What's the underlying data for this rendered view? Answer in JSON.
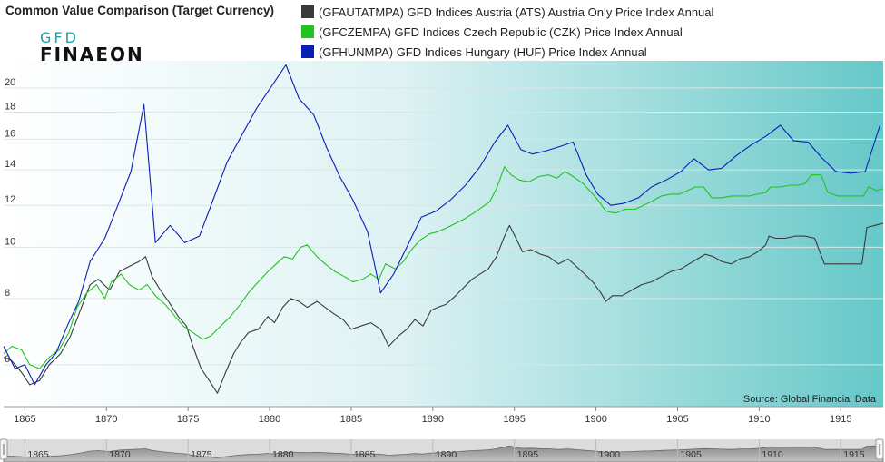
{
  "header": {
    "title": "Common Value Comparison (Target Currency)"
  },
  "logo": {
    "line1": "GFD",
    "line2": "FINAEON"
  },
  "legend": [
    {
      "label": "(GFAUTATMPA) GFD Indices Austria (ATS) Austria Only Price Index Annual",
      "color": "#3a3a3a"
    },
    {
      "label": "(GFCZEMPA) GFD Indices Czech Republic (CZK) Price Index Annual",
      "color": "#1fc41f"
    },
    {
      "label": "(GFHUNMPA) GFD Indices Hungary (HUF) Price Index Annual",
      "color": "#0a1fb5"
    }
  ],
  "source": "Source: Global Financial Data",
  "chart_data": {
    "type": "line",
    "xlim": [
      1863.7,
      1917.6
    ],
    "ylim": [
      5.0,
      22.5
    ],
    "y_scale": "log",
    "yticks": [
      6,
      8,
      10,
      12,
      14,
      16,
      18,
      20
    ],
    "xticks": [
      1865,
      1870,
      1875,
      1880,
      1885,
      1890,
      1895,
      1900,
      1905,
      1910,
      1915
    ],
    "navigator_ticks": [
      1865,
      1870,
      1875,
      1880,
      1885,
      1890,
      1895,
      1900,
      1905,
      1910,
      1915
    ],
    "series": [
      {
        "name": "(GFAUTATMPA) GFD Indices Austria (ATS) Austria Only Price Index Annual",
        "color": "#3a3a3a",
        "points": [
          [
            1863.7,
            6.2
          ],
          [
            1864.2,
            6.1
          ],
          [
            1864.8,
            5.8
          ],
          [
            1865.3,
            5.5
          ],
          [
            1865.9,
            5.6
          ],
          [
            1866.5,
            6.0
          ],
          [
            1867.2,
            6.3
          ],
          [
            1867.8,
            6.8
          ],
          [
            1868.4,
            7.6
          ],
          [
            1869.0,
            8.5
          ],
          [
            1869.5,
            8.7
          ],
          [
            1870.2,
            8.3
          ],
          [
            1870.8,
            9.0
          ],
          [
            1871.4,
            9.2
          ],
          [
            1872.0,
            9.4
          ],
          [
            1872.4,
            9.6
          ],
          [
            1872.8,
            8.8
          ],
          [
            1873.3,
            8.3
          ],
          [
            1873.8,
            7.9
          ],
          [
            1874.4,
            7.4
          ],
          [
            1874.9,
            7.1
          ],
          [
            1875.3,
            6.5
          ],
          [
            1875.8,
            5.9
          ],
          [
            1876.3,
            5.6
          ],
          [
            1876.8,
            5.3
          ],
          [
            1877.3,
            5.8
          ],
          [
            1877.8,
            6.3
          ],
          [
            1878.2,
            6.6
          ],
          [
            1878.7,
            6.9
          ],
          [
            1879.3,
            7.0
          ],
          [
            1879.9,
            7.4
          ],
          [
            1880.3,
            7.2
          ],
          [
            1880.8,
            7.7
          ],
          [
            1881.3,
            8.0
          ],
          [
            1881.8,
            7.9
          ],
          [
            1882.3,
            7.7
          ],
          [
            1882.9,
            7.9
          ],
          [
            1883.4,
            7.7
          ],
          [
            1883.9,
            7.5
          ],
          [
            1884.5,
            7.3
          ],
          [
            1885.0,
            7.0
          ],
          [
            1885.6,
            7.1
          ],
          [
            1886.2,
            7.2
          ],
          [
            1886.8,
            7.0
          ],
          [
            1887.3,
            6.5
          ],
          [
            1887.9,
            6.8
          ],
          [
            1888.4,
            7.0
          ],
          [
            1888.9,
            7.3
          ],
          [
            1889.4,
            7.1
          ],
          [
            1889.9,
            7.6
          ],
          [
            1890.3,
            7.7
          ],
          [
            1890.8,
            7.8
          ],
          [
            1891.4,
            8.1
          ],
          [
            1891.9,
            8.4
          ],
          [
            1892.4,
            8.7
          ],
          [
            1892.9,
            8.9
          ],
          [
            1893.4,
            9.1
          ],
          [
            1893.9,
            9.6
          ],
          [
            1894.4,
            10.5
          ],
          [
            1894.7,
            11.0
          ],
          [
            1895.1,
            10.4
          ],
          [
            1895.5,
            9.8
          ],
          [
            1896.0,
            9.9
          ],
          [
            1896.6,
            9.7
          ],
          [
            1897.1,
            9.6
          ],
          [
            1897.7,
            9.3
          ],
          [
            1898.3,
            9.5
          ],
          [
            1898.8,
            9.2
          ],
          [
            1899.3,
            8.9
          ],
          [
            1899.8,
            8.6
          ],
          [
            1900.3,
            8.2
          ],
          [
            1900.6,
            7.9
          ],
          [
            1901.0,
            8.1
          ],
          [
            1901.6,
            8.1
          ],
          [
            1902.2,
            8.3
          ],
          [
            1902.8,
            8.5
          ],
          [
            1903.4,
            8.6
          ],
          [
            1904.0,
            8.8
          ],
          [
            1904.6,
            9.0
          ],
          [
            1905.2,
            9.1
          ],
          [
            1905.7,
            9.3
          ],
          [
            1906.2,
            9.5
          ],
          [
            1906.7,
            9.7
          ],
          [
            1907.2,
            9.6
          ],
          [
            1907.7,
            9.4
          ],
          [
            1908.3,
            9.3
          ],
          [
            1908.8,
            9.5
          ],
          [
            1909.4,
            9.6
          ],
          [
            1909.9,
            9.8
          ],
          [
            1910.4,
            10.1
          ],
          [
            1910.6,
            10.5
          ],
          [
            1911.0,
            10.4
          ],
          [
            1911.6,
            10.4
          ],
          [
            1912.2,
            10.5
          ],
          [
            1912.8,
            10.5
          ],
          [
            1913.4,
            10.4
          ],
          [
            1914.0,
            9.3
          ],
          [
            1914.6,
            9.3
          ],
          [
            1915.2,
            9.3
          ],
          [
            1915.8,
            9.3
          ],
          [
            1916.3,
            9.3
          ],
          [
            1916.6,
            10.9
          ],
          [
            1917.1,
            11.0
          ],
          [
            1917.6,
            11.1
          ]
        ]
      },
      {
        "name": "(GFCZEMPA) GFD Indices Czech Republic (CZK) Price Index Annual",
        "color": "#1fc41f",
        "points": [
          [
            1863.7,
            6.3
          ],
          [
            1864.2,
            6.5
          ],
          [
            1864.8,
            6.4
          ],
          [
            1865.3,
            6.0
          ],
          [
            1865.9,
            5.9
          ],
          [
            1866.5,
            6.2
          ],
          [
            1867.1,
            6.4
          ],
          [
            1867.7,
            6.9
          ],
          [
            1868.2,
            7.7
          ],
          [
            1868.8,
            8.2
          ],
          [
            1869.4,
            8.5
          ],
          [
            1869.9,
            8.0
          ],
          [
            1870.3,
            8.6
          ],
          [
            1870.9,
            8.9
          ],
          [
            1871.4,
            8.5
          ],
          [
            1872.0,
            8.3
          ],
          [
            1872.5,
            8.5
          ],
          [
            1873.0,
            8.1
          ],
          [
            1873.6,
            7.8
          ],
          [
            1874.2,
            7.4
          ],
          [
            1874.7,
            7.1
          ],
          [
            1875.3,
            6.9
          ],
          [
            1875.9,
            6.7
          ],
          [
            1876.4,
            6.8
          ],
          [
            1877.0,
            7.1
          ],
          [
            1877.6,
            7.4
          ],
          [
            1878.2,
            7.8
          ],
          [
            1878.7,
            8.2
          ],
          [
            1879.3,
            8.6
          ],
          [
            1879.9,
            9.0
          ],
          [
            1880.4,
            9.3
          ],
          [
            1880.9,
            9.6
          ],
          [
            1881.4,
            9.5
          ],
          [
            1881.9,
            10.0
          ],
          [
            1882.3,
            10.1
          ],
          [
            1882.9,
            9.6
          ],
          [
            1883.4,
            9.3
          ],
          [
            1884.0,
            9.0
          ],
          [
            1884.6,
            8.8
          ],
          [
            1885.1,
            8.6
          ],
          [
            1885.7,
            8.7
          ],
          [
            1886.2,
            8.9
          ],
          [
            1886.7,
            8.7
          ],
          [
            1887.1,
            9.3
          ],
          [
            1887.7,
            9.1
          ],
          [
            1888.2,
            9.4
          ],
          [
            1888.7,
            9.9
          ],
          [
            1889.2,
            10.3
          ],
          [
            1889.8,
            10.6
          ],
          [
            1890.3,
            10.7
          ],
          [
            1890.9,
            10.9
          ],
          [
            1891.4,
            11.1
          ],
          [
            1891.9,
            11.3
          ],
          [
            1892.5,
            11.6
          ],
          [
            1893.0,
            11.9
          ],
          [
            1893.5,
            12.2
          ],
          [
            1893.9,
            12.9
          ],
          [
            1894.4,
            14.2
          ],
          [
            1894.8,
            13.7
          ],
          [
            1895.3,
            13.4
          ],
          [
            1895.9,
            13.3
          ],
          [
            1896.5,
            13.6
          ],
          [
            1897.1,
            13.7
          ],
          [
            1897.6,
            13.5
          ],
          [
            1898.1,
            13.9
          ],
          [
            1898.6,
            13.6
          ],
          [
            1899.2,
            13.2
          ],
          [
            1899.7,
            12.7
          ],
          [
            1900.1,
            12.3
          ],
          [
            1900.6,
            11.7
          ],
          [
            1901.2,
            11.6
          ],
          [
            1901.8,
            11.8
          ],
          [
            1902.4,
            11.8
          ],
          [
            1902.9,
            12.0
          ],
          [
            1903.4,
            12.2
          ],
          [
            1904.0,
            12.5
          ],
          [
            1904.6,
            12.6
          ],
          [
            1905.1,
            12.6
          ],
          [
            1905.6,
            12.8
          ],
          [
            1906.1,
            13.0
          ],
          [
            1906.6,
            13.0
          ],
          [
            1907.1,
            12.4
          ],
          [
            1907.7,
            12.4
          ],
          [
            1908.3,
            12.5
          ],
          [
            1908.8,
            12.5
          ],
          [
            1909.4,
            12.5
          ],
          [
            1909.9,
            12.6
          ],
          [
            1910.4,
            12.7
          ],
          [
            1910.7,
            13.0
          ],
          [
            1911.3,
            13.0
          ],
          [
            1911.9,
            13.1
          ],
          [
            1912.4,
            13.1
          ],
          [
            1912.8,
            13.2
          ],
          [
            1913.2,
            13.7
          ],
          [
            1913.8,
            13.7
          ],
          [
            1914.2,
            12.7
          ],
          [
            1914.8,
            12.5
          ],
          [
            1915.4,
            12.5
          ],
          [
            1916.0,
            12.5
          ],
          [
            1916.4,
            12.5
          ],
          [
            1916.7,
            13.0
          ],
          [
            1917.2,
            12.8
          ],
          [
            1917.6,
            12.9
          ]
        ]
      },
      {
        "name": "(GFHUNMPA) GFD Indices Hungary (HUF) Price Index Annual",
        "color": "#0a1fb5",
        "points": [
          [
            1863.7,
            6.5
          ],
          [
            1864.4,
            5.9
          ],
          [
            1865.0,
            6.0
          ],
          [
            1865.6,
            5.5
          ],
          [
            1866.3,
            6.0
          ],
          [
            1866.9,
            6.3
          ],
          [
            1867.6,
            7.1
          ],
          [
            1868.3,
            7.9
          ],
          [
            1869.0,
            9.4
          ],
          [
            1869.9,
            10.4
          ],
          [
            1870.7,
            12.0
          ],
          [
            1871.5,
            13.9
          ],
          [
            1872.3,
            18.6
          ],
          [
            1873.0,
            10.2
          ],
          [
            1873.9,
            11.0
          ],
          [
            1874.8,
            10.2
          ],
          [
            1875.7,
            10.5
          ],
          [
            1876.5,
            12.2
          ],
          [
            1877.4,
            14.5
          ],
          [
            1878.3,
            16.3
          ],
          [
            1879.2,
            18.3
          ],
          [
            1880.1,
            20.1
          ],
          [
            1881.0,
            22.1
          ],
          [
            1881.8,
            19.1
          ],
          [
            1882.7,
            17.8
          ],
          [
            1883.5,
            15.4
          ],
          [
            1884.3,
            13.6
          ],
          [
            1885.1,
            12.3
          ],
          [
            1886.0,
            10.7
          ],
          [
            1886.8,
            8.2
          ],
          [
            1887.6,
            8.9
          ],
          [
            1888.4,
            10.0
          ],
          [
            1889.3,
            11.4
          ],
          [
            1890.2,
            11.7
          ],
          [
            1891.1,
            12.3
          ],
          [
            1892.0,
            13.1
          ],
          [
            1892.9,
            14.2
          ],
          [
            1893.8,
            15.8
          ],
          [
            1894.6,
            17.0
          ],
          [
            1895.4,
            15.3
          ],
          [
            1896.1,
            15.0
          ],
          [
            1896.9,
            15.2
          ],
          [
            1897.8,
            15.5
          ],
          [
            1898.6,
            15.8
          ],
          [
            1899.4,
            13.7
          ],
          [
            1900.1,
            12.6
          ],
          [
            1900.9,
            12.0
          ],
          [
            1901.7,
            12.1
          ],
          [
            1902.6,
            12.4
          ],
          [
            1903.4,
            13.0
          ],
          [
            1904.3,
            13.4
          ],
          [
            1905.2,
            13.9
          ],
          [
            1906.0,
            14.7
          ],
          [
            1906.9,
            14.0
          ],
          [
            1907.7,
            14.1
          ],
          [
            1908.6,
            14.9
          ],
          [
            1909.5,
            15.6
          ],
          [
            1910.4,
            16.2
          ],
          [
            1911.3,
            17.0
          ],
          [
            1912.1,
            15.9
          ],
          [
            1913.0,
            15.8
          ],
          [
            1913.8,
            14.8
          ],
          [
            1914.7,
            13.9
          ],
          [
            1915.6,
            13.8
          ],
          [
            1916.5,
            13.9
          ],
          [
            1917.4,
            17.0
          ]
        ]
      }
    ]
  }
}
